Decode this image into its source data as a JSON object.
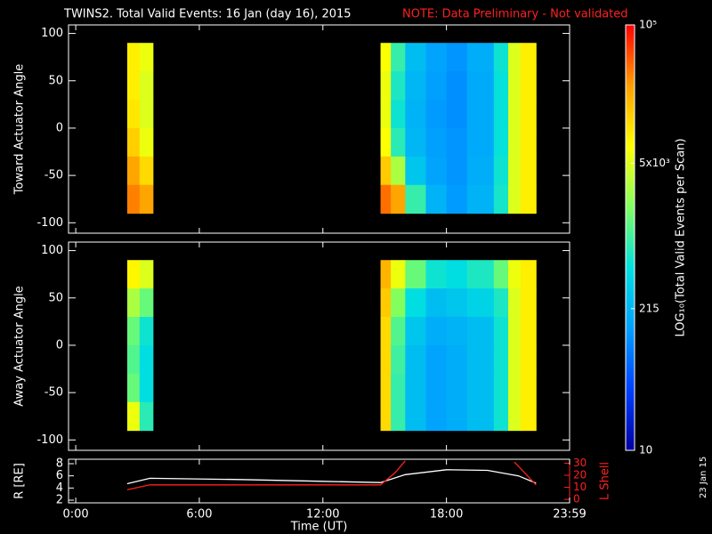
{
  "title": "TWINS2. Total Valid Events: 16 Jan (day  16), 2015",
  "note": "NOTE: Data Preliminary - Not validated",
  "stamp": "23 Jan 15",
  "chart_data": [
    {
      "type": "heatmap",
      "ylabel": "Toward Actuator Angle",
      "ylim": [
        -111,
        109
      ],
      "yticks": [
        -100,
        -50,
        0,
        50,
        100
      ],
      "x_edges": [
        2.5,
        3.1,
        3.75,
        14.8,
        15.3,
        16,
        17,
        18,
        19,
        20.3,
        21,
        21.6,
        22.35
      ],
      "y_edges": [
        90,
        60,
        30,
        0,
        -30,
        -60,
        -90
      ],
      "values": [
        [
          9000,
          6000,
          null,
          7000,
          900,
          250,
          150,
          120,
          180,
          600,
          5000,
          9000
        ],
        [
          9000,
          5000,
          null,
          6000,
          700,
          220,
          140,
          110,
          170,
          550,
          5000,
          9000
        ],
        [
          10000,
          5000,
          null,
          6000,
          600,
          200,
          130,
          110,
          170,
          550,
          5000,
          9000
        ],
        [
          14000,
          6000,
          null,
          7000,
          800,
          220,
          140,
          120,
          170,
          550,
          5000,
          9000
        ],
        [
          25000,
          12000,
          null,
          15000,
          3000,
          300,
          150,
          120,
          180,
          600,
          5000,
          9000
        ],
        [
          35000,
          25000,
          null,
          40000,
          25000,
          900,
          200,
          130,
          200,
          650,
          5000,
          9000
        ]
      ]
    },
    {
      "type": "heatmap",
      "ylabel": "Away Actuator Angle",
      "ylim": [
        -111,
        109
      ],
      "yticks": [
        -100,
        -50,
        0,
        50,
        100
      ],
      "x_edges": [
        2.5,
        3.1,
        3.75,
        14.8,
        15.3,
        16,
        17,
        18,
        19,
        20.3,
        21,
        21.6,
        22.35
      ],
      "y_edges": [
        90,
        60,
        30,
        0,
        -30,
        -60,
        -90
      ],
      "values": [
        [
          8000,
          5000,
          null,
          20000,
          6000,
          1500,
          600,
          500,
          700,
          1500,
          6000,
          9000
        ],
        [
          3000,
          1500,
          null,
          15000,
          2000,
          500,
          250,
          300,
          400,
          700,
          5000,
          9000
        ],
        [
          1500,
          600,
          null,
          12000,
          1200,
          300,
          180,
          200,
          250,
          600,
          5000,
          9000
        ],
        [
          1200,
          500,
          null,
          12000,
          1000,
          250,
          150,
          180,
          250,
          600,
          5000,
          9000
        ],
        [
          1500,
          500,
          null,
          12000,
          900,
          250,
          150,
          180,
          250,
          600,
          5000,
          9000
        ],
        [
          6000,
          800,
          null,
          12000,
          900,
          250,
          150,
          180,
          250,
          600,
          5000,
          9000
        ]
      ]
    },
    {
      "type": "line",
      "ylabel": "R [RE]",
      "y2label": "L Shell",
      "xlabel": "Time (UT)",
      "xlim": [
        -0.35,
        23.98
      ],
      "xticks": [
        {
          "value": 0,
          "label": "0:00"
        },
        {
          "value": 6,
          "label": "6:00"
        },
        {
          "value": 12,
          "label": "12:00"
        },
        {
          "value": 18,
          "label": "18:00"
        },
        {
          "value": 23.98,
          "label": "23:59"
        }
      ],
      "ylim": [
        1.56,
        8.73
      ],
      "yticks": [
        2,
        4,
        6,
        8
      ],
      "y2lim": [
        -2.9,
        33.3
      ],
      "y2ticks": [
        0,
        10,
        20,
        30
      ],
      "series": [
        {
          "name": "R",
          "color": "#ffffff",
          "x": [
            2.5,
            3.6,
            8,
            12,
            14.8,
            16,
            18,
            20,
            21.5,
            22.35
          ],
          "values": [
            4.7,
            5.6,
            5.4,
            5.1,
            4.9,
            6.2,
            7.0,
            6.9,
            6.0,
            4.8
          ]
        },
        {
          "name": "L Shell",
          "color": "#ff2020",
          "axis": "y2",
          "x": [
            2.5,
            3.6,
            14.8,
            15.5,
            16.0,
            18,
            21.3,
            22.35
          ],
          "values": [
            8,
            12,
            12,
            22,
            32,
            null,
            31,
            12
          ]
        }
      ]
    },
    {
      "type": "colorbar",
      "label": "LOG₁₀(Total Valid Events per Scan)",
      "log": true,
      "ylim": [
        10,
        100000
      ],
      "yticks": [
        10,
        215,
        {
          "value": 5000,
          "label": "5x10³"
        },
        {
          "value": 100000,
          "label": "10⁵"
        }
      ],
      "colors": [
        "#0000a0",
        "#0040ff",
        "#00a0ff",
        "#00e0e0",
        "#80ff60",
        "#ffff00",
        "#ffa000",
        "#ff0000"
      ]
    }
  ]
}
